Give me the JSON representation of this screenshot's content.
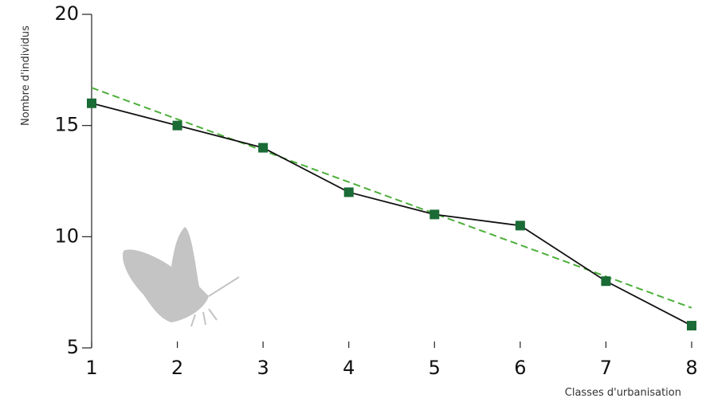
{
  "chart_data": {
    "type": "line",
    "x": [
      1,
      2,
      3,
      4,
      5,
      6,
      7,
      8
    ],
    "series": [
      {
        "color": "#111111",
        "marker_color": "#1a6b35",
        "values": [
          16,
          15,
          14,
          12,
          11,
          10.5,
          8,
          6
        ]
      }
    ],
    "trend": {
      "x": [
        1,
        8
      ],
      "values": [
        16.7,
        6.8
      ],
      "color": "#4caf3a"
    },
    "xlim": [
      1,
      8
    ],
    "xticks": [
      1,
      2,
      3,
      4,
      5,
      6,
      7,
      8
    ],
    "ylim": [
      5,
      20
    ],
    "yticks": [
      5,
      10,
      15,
      20
    ],
    "x_label": "Classes d'urbanisation",
    "y_label": "Nombre d'individus"
  }
}
